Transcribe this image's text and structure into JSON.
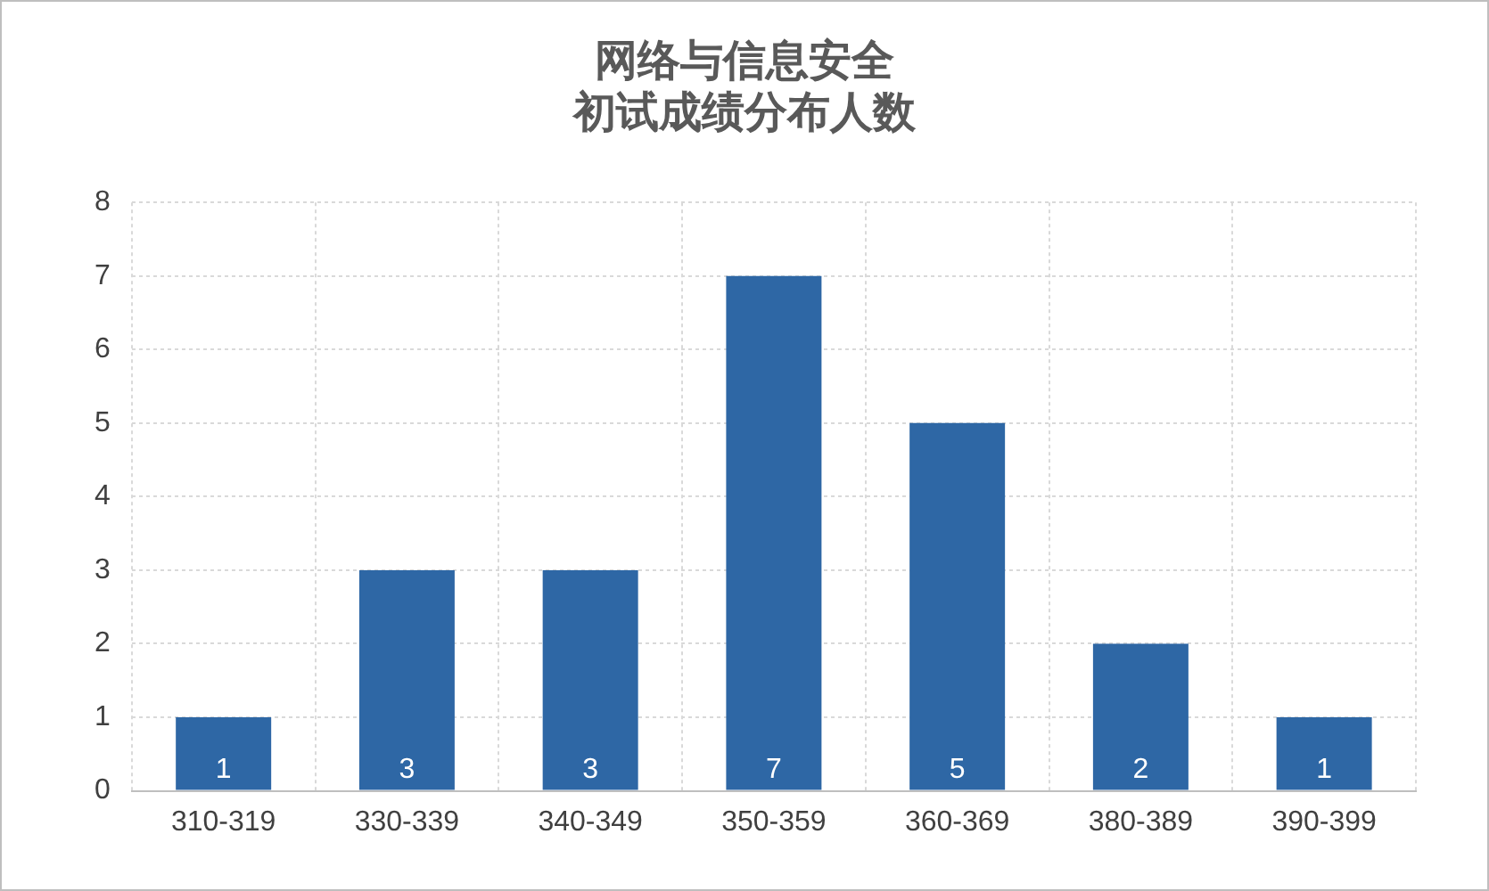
{
  "chart_data": {
    "type": "bar",
    "title": "网络与信息安全",
    "subtitle": "初试成绩分布人数",
    "categories": [
      "310-319",
      "330-339",
      "340-349",
      "350-359",
      "360-369",
      "380-389",
      "390-399"
    ],
    "values": [
      1,
      3,
      3,
      7,
      5,
      2,
      1
    ],
    "color": "#2e67a5",
    "ylim": [
      0,
      8
    ],
    "yticks": [
      0,
      1,
      2,
      3,
      4,
      5,
      6,
      7,
      8
    ],
    "grid": true,
    "data_labels": true
  }
}
